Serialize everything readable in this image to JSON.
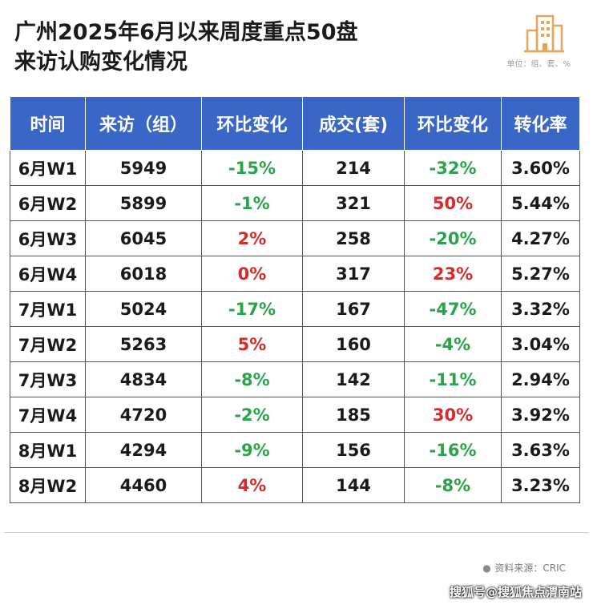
{
  "header": {
    "title_line1": "广州2025年6月以来周度重点50盘",
    "title_line2": "来访认购变化情况",
    "unit_note": "单位：组、套、%",
    "logo_icon": "building-icon"
  },
  "colors": {
    "header_bg": "#3a66c8",
    "negative": "#2aa34a",
    "positive": "#d42b2b"
  },
  "table": {
    "columns": [
      "时间",
      "来访（组）",
      "环比变化",
      "成交(套)",
      "环比变化",
      "转化率"
    ],
    "rows": [
      [
        "6月W1",
        "5949",
        "-15%",
        "214",
        "-32%",
        "3.60%"
      ],
      [
        "6月W2",
        "5899",
        "-1%",
        "321",
        "50%",
        "5.44%"
      ],
      [
        "6月W3",
        "6045",
        "2%",
        "258",
        "-20%",
        "4.27%"
      ],
      [
        "6月W4",
        "6018",
        "0%",
        "317",
        "23%",
        "5.27%"
      ],
      [
        "7月W1",
        "5024",
        "-17%",
        "167",
        "-47%",
        "3.32%"
      ],
      [
        "7月W2",
        "5263",
        "5%",
        "160",
        "-4%",
        "3.04%"
      ],
      [
        "7月W3",
        "4834",
        "-8%",
        "142",
        "-11%",
        "2.94%"
      ],
      [
        "7月W4",
        "4720",
        "-2%",
        "185",
        "30%",
        "3.92%"
      ],
      [
        "8月W1",
        "4294",
        "-9%",
        "156",
        "-16%",
        "3.63%"
      ],
      [
        "8月W2",
        "4460",
        "4%",
        "144",
        "-8%",
        "3.23%"
      ]
    ]
  },
  "footer": {
    "source_icon": "info-icon",
    "source_glyph": "●",
    "source": "资料来源：CRIC",
    "credit": "搜狐号@搜狐焦点渭南站"
  }
}
